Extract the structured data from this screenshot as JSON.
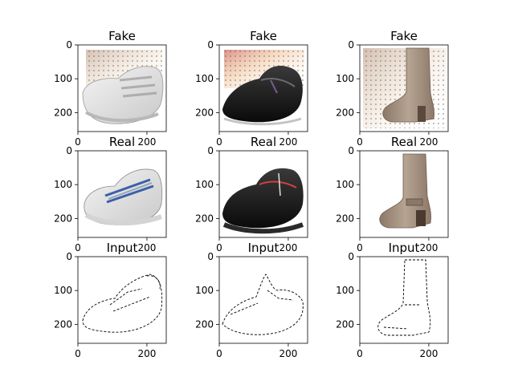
{
  "chart_data": {
    "type": "image",
    "grid": false,
    "panels": [
      {
        "title": "Fake",
        "content": "generated white sneaker",
        "xticks": [
          "0",
          "200"
        ],
        "yticks": [
          "0",
          "100",
          "200"
        ],
        "xlim": [
          0,
          256
        ],
        "ylim": [
          256,
          0
        ]
      },
      {
        "title": "Fake",
        "content": "generated black clog",
        "xticks": [
          "0",
          "200"
        ],
        "yticks": [
          "0",
          "100",
          "200"
        ],
        "xlim": [
          0,
          256
        ],
        "ylim": [
          256,
          0
        ]
      },
      {
        "title": "Fake",
        "content": "generated tan boot",
        "xticks": [
          "0",
          "200"
        ],
        "yticks": [
          "0",
          "100",
          "200"
        ],
        "xlim": [
          0,
          256
        ],
        "ylim": [
          256,
          0
        ]
      },
      {
        "title": "Real",
        "content": "white sneaker photo",
        "xticks": [
          "0",
          "200"
        ],
        "yticks": [
          "0",
          "100",
          "200"
        ],
        "xlim": [
          0,
          256
        ],
        "ylim": [
          256,
          0
        ]
      },
      {
        "title": "Real",
        "content": "black clog photo",
        "xticks": [
          "0",
          "200"
        ],
        "yticks": [
          "0",
          "100",
          "200"
        ],
        "xlim": [
          0,
          256
        ],
        "ylim": [
          256,
          0
        ]
      },
      {
        "title": "Real",
        "content": "tan boot photo",
        "xticks": [
          "0",
          "200"
        ],
        "yticks": [
          "0",
          "100",
          "200"
        ],
        "xlim": [
          0,
          256
        ],
        "ylim": [
          256,
          0
        ]
      },
      {
        "title": "Input",
        "content": "edge sketch of sneaker",
        "xticks": [
          "0",
          "200"
        ],
        "yticks": [
          "0",
          "100",
          "200"
        ],
        "xlim": [
          0,
          256
        ],
        "ylim": [
          256,
          0
        ]
      },
      {
        "title": "Input",
        "content": "edge sketch of clog",
        "xticks": [
          "0",
          "200"
        ],
        "yticks": [
          "0",
          "100",
          "200"
        ],
        "xlim": [
          0,
          256
        ],
        "ylim": [
          256,
          0
        ]
      },
      {
        "title": "Input",
        "content": "edge sketch of boot",
        "xticks": [
          "0",
          "200"
        ],
        "yticks": [
          "0",
          "100",
          "200"
        ],
        "xlim": [
          0,
          256
        ],
        "ylim": [
          256,
          0
        ]
      }
    ]
  }
}
